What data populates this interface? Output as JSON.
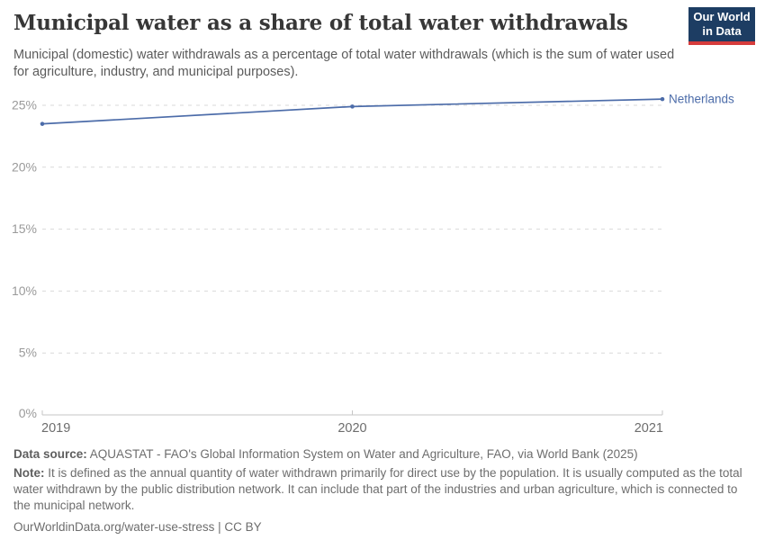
{
  "header": {
    "title": "Municipal water as a share of total water withdrawals",
    "subtitle": "Municipal (domestic) water withdrawals as a percentage of total water withdrawals (which is the sum of water used for agriculture, industry, and municipal purposes).",
    "logo": {
      "line1": "Our World",
      "line2": "in Data",
      "bg_color": "#1d3d63",
      "accent_color": "#d63c3c"
    }
  },
  "chart_data": {
    "type": "line",
    "title": "Municipal water as a share of total water withdrawals",
    "x": [
      2019,
      2020,
      2021
    ],
    "series": [
      {
        "name": "Netherlands",
        "values": [
          23.5,
          24.9,
          25.5
        ],
        "color": "#4c6ca9"
      }
    ],
    "xlabel": "",
    "ylabel": "",
    "ylim": [
      0,
      25
    ],
    "yticks": [
      0,
      5,
      10,
      15,
      20,
      25
    ],
    "ytick_suffix": "%",
    "xticks": [
      2019,
      2020,
      2021
    ],
    "grid": "horizontal dashed",
    "grid_color": "#d9d9d9",
    "axis_color": "#c6c6c6",
    "legend_position": "right of line end"
  },
  "footer": {
    "data_source_label": "Data source:",
    "data_source": "AQUASTAT - FAO's Global Information System on Water and Agriculture, FAO, via World Bank (2025)",
    "note_label": "Note:",
    "note": "It is defined as the annual quantity of water withdrawn primarily for direct use by the population. It is usually computed as the total water withdrawn by the public distribution network. It can include that part of the industries and urban agriculture, which is connected to the municipal network.",
    "license": "OurWorldinData.org/water-use-stress | CC BY"
  }
}
